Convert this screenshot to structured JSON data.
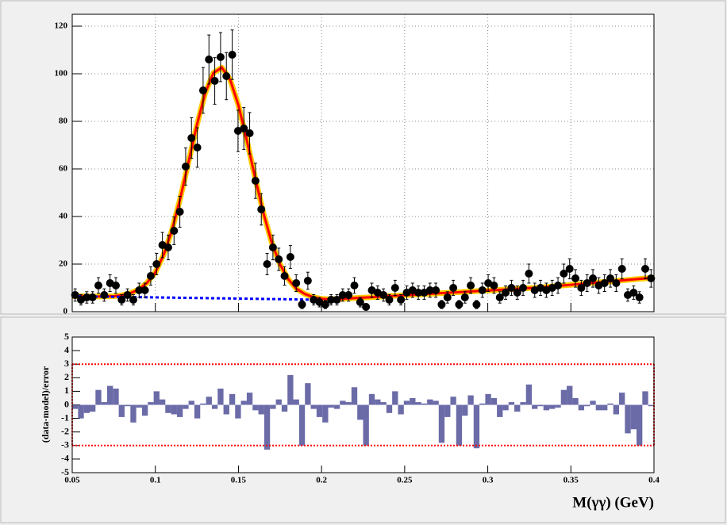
{
  "chart_data": [
    {
      "type": "scatter",
      "x": [
        0.05175,
        0.05525,
        0.05875,
        0.06225,
        0.06575,
        0.06925,
        0.07275,
        0.07625,
        0.07975,
        0.08325,
        0.08675,
        0.09025,
        0.09375,
        0.09725,
        0.10075,
        0.10425,
        0.10775,
        0.11125,
        0.11475,
        0.11825,
        0.12175,
        0.12525,
        0.12875,
        0.13225,
        0.13575,
        0.13925,
        0.14275,
        0.14625,
        0.14975,
        0.15325,
        0.15675,
        0.16025,
        0.16375,
        0.16725,
        0.17075,
        0.17425,
        0.17775,
        0.18125,
        0.18475,
        0.18825,
        0.19175,
        0.19525,
        0.19875,
        0.20225,
        0.20575,
        0.20925,
        0.21275,
        0.21625,
        0.21975,
        0.22325,
        0.22675,
        0.23025,
        0.23375,
        0.23725,
        0.24075,
        0.24425,
        0.24775,
        0.25125,
        0.25475,
        0.25825,
        0.26175,
        0.26525,
        0.26875,
        0.27225,
        0.27575,
        0.27925,
        0.28275,
        0.28625,
        0.28975,
        0.29325,
        0.29675,
        0.30025,
        0.30375,
        0.30725,
        0.31075,
        0.31425,
        0.31775,
        0.32125,
        0.32475,
        0.32825,
        0.33175,
        0.33525,
        0.33875,
        0.34225,
        0.34575,
        0.34925,
        0.35275,
        0.35625,
        0.35975,
        0.36325,
        0.36675,
        0.37025,
        0.37375,
        0.37725,
        0.38075,
        0.38425,
        0.38775,
        0.39125,
        0.39475,
        0.39825
      ],
      "values": [
        7,
        5,
        6,
        6,
        11,
        7,
        12,
        11,
        5,
        7,
        5,
        9,
        9,
        15,
        20,
        28,
        27,
        34,
        42,
        61,
        73,
        69,
        93,
        106,
        97,
        107,
        99,
        108,
        76,
        77,
        75,
        55,
        43,
        20,
        27,
        22,
        15,
        23,
        12,
        3,
        13,
        5,
        4,
        3,
        5,
        5,
        7,
        7,
        11,
        4,
        2,
        9,
        8,
        7,
        5,
        10,
        5,
        8,
        9,
        8,
        8,
        9,
        9,
        3,
        6,
        10,
        3,
        6,
        11,
        3,
        9,
        12,
        11,
        6,
        8,
        10,
        8,
        10,
        16,
        9,
        10,
        9,
        10,
        11,
        16,
        18,
        14,
        10,
        12,
        14,
        11,
        12,
        14,
        12,
        18,
        7,
        8,
        6,
        18,
        14
      ],
      "errors": [
        2.6,
        2.2,
        2.4,
        2.4,
        3.3,
        2.6,
        3.5,
        3.3,
        2.2,
        2.6,
        2.2,
        3,
        3,
        3.9,
        4.5,
        5.3,
        5.2,
        5.8,
        6.5,
        7.8,
        8.5,
        8.3,
        9.6,
        10.3,
        9.8,
        10.3,
        9.9,
        10.4,
        8.7,
        8.8,
        8.7,
        7.4,
        6.6,
        4.5,
        5.2,
        4.7,
        3.9,
        4.8,
        3.5,
        1.7,
        3.6,
        2.2,
        2,
        1.7,
        2.2,
        2.2,
        2.6,
        2.6,
        3.3,
        2,
        1.4,
        3,
        2.8,
        2.6,
        2.2,
        3.2,
        2.2,
        2.8,
        3,
        2.8,
        2.8,
        3,
        3,
        1.7,
        2.4,
        3.2,
        1.7,
        2.4,
        3.3,
        1.7,
        3,
        3.5,
        3.3,
        2.4,
        2.8,
        3.2,
        2.8,
        3.2,
        4,
        3,
        3.2,
        3,
        3.2,
        3.3,
        4,
        4.2,
        3.7,
        3.2,
        3.5,
        3.7,
        3.3,
        3.5,
        3.7,
        3.5,
        4.2,
        2.6,
        2.8,
        2.4,
        4.2,
        3.7
      ],
      "color": "#000000",
      "lines": [
        {
          "x": [
            0.05,
            0.055,
            0.06,
            0.065,
            0.07,
            0.075,
            0.08,
            0.085,
            0.09,
            0.095,
            0.1,
            0.105,
            0.11,
            0.115,
            0.12,
            0.125,
            0.13,
            0.135,
            0.14,
            0.145,
            0.15,
            0.155,
            0.16,
            0.165,
            0.17,
            0.175,
            0.18,
            0.185,
            0.19,
            0.195,
            0.2,
            0.205,
            0.21,
            0.215,
            0.22,
            0.225,
            0.23,
            0.235,
            0.24,
            0.245,
            0.25,
            0.255,
            0.26,
            0.265,
            0.27,
            0.275,
            0.28,
            0.285,
            0.29,
            0.295,
            0.3,
            0.305,
            0.31,
            0.315,
            0.32,
            0.325,
            0.33,
            0.335,
            0.34,
            0.345,
            0.35,
            0.355,
            0.36,
            0.365,
            0.37,
            0.375,
            0.38,
            0.385,
            0.39,
            0.395,
            0.4
          ],
          "values": [
            6.5,
            6.45,
            6.4,
            6.35,
            6.4,
            6.5,
            6.9,
            7.8,
            9.3,
            12.1,
            16.5,
            23.9,
            34.3,
            47.6,
            63.0,
            78.5,
            91.9,
            100.4,
            102.6,
            97.5,
            86.8,
            72.2,
            56.4,
            41.6,
            29.1,
            19.9,
            13.6,
            9.6,
            7.4,
            6.1,
            5.4,
            5.2,
            5.3,
            5.5,
            5.7,
            5.9,
            6.1,
            6.3,
            6.5,
            6.7,
            6.9,
            7.1,
            7.3,
            7.5,
            7.7,
            7.9,
            8.1,
            8.3,
            8.5,
            8.7,
            8.9,
            9.1,
            9.3,
            9.5,
            9.7,
            9.9,
            10.1,
            10.4,
            10.7,
            11.0,
            11.3,
            11.6,
            11.9,
            12.2,
            12.5,
            12.8,
            13.1,
            13.4,
            13.7,
            14.0,
            14.3
          ],
          "color": "#ff0000",
          "band_color": "#ffcc00",
          "dashed": false
        },
        {
          "x": [
            0.05,
            0.06,
            0.07,
            0.08,
            0.09,
            0.1,
            0.11,
            0.12,
            0.13,
            0.14,
            0.15,
            0.16,
            0.17,
            0.18,
            0.19,
            0.2
          ],
          "values": [
            6.5,
            6.4,
            6.3,
            6.2,
            6.1,
            6.0,
            5.9,
            5.8,
            5.7,
            5.6,
            5.5,
            5.4,
            5.3,
            5.2,
            5.1,
            5.0
          ],
          "color": "#0000ff",
          "dashed": true
        }
      ],
      "xlim": [
        0.05,
        0.4
      ],
      "ylim": [
        0,
        125
      ],
      "xticks": [
        0.05,
        0.1,
        0.15,
        0.2,
        0.25,
        0.3,
        0.35,
        0.4
      ],
      "yticks": [
        0,
        20,
        40,
        60,
        80,
        100,
        120
      ],
      "grid": true
    },
    {
      "type": "bar",
      "values": [
        -0.3,
        -1.0,
        -0.6,
        -0.5,
        1.1,
        0.2,
        1.4,
        1.2,
        -0.9,
        -0.1,
        -1.3,
        -0.2,
        -0.8,
        0.2,
        1.0,
        0.4,
        -0.6,
        -0.7,
        -0.9,
        -0.3,
        0.3,
        -1.0,
        0.1,
        0.6,
        -0.3,
        1.2,
        -0.7,
        0.8,
        -1.0,
        0.3,
        0.9,
        -0.4,
        -0.7,
        -3.3,
        -0.3,
        0.4,
        -0.5,
        2.2,
        0.4,
        -3.0,
        1.6,
        -0.3,
        -0.9,
        -1.3,
        -0.2,
        -0.3,
        0.3,
        0.2,
        1.3,
        -1.1,
        -3.0,
        0.8,
        0.4,
        0.2,
        -0.6,
        1.0,
        -0.7,
        0.3,
        0.5,
        0.2,
        0.1,
        0.4,
        0.3,
        -2.8,
        -0.9,
        0.6,
        -3.0,
        -0.8,
        0.7,
        -3.2,
        0.1,
        0.8,
        0.5,
        -0.9,
        -0.4,
        0.2,
        -0.5,
        0.2,
        1.5,
        -0.3,
        -0.1,
        -0.4,
        -0.3,
        -0.2,
        1.1,
        1.4,
        0.5,
        -0.4,
        -0.1,
        0.3,
        -0.4,
        -0.4,
        0.1,
        -0.7,
        0.9,
        -2.1,
        -1.8,
        -3.0,
        1.0,
        -0.1
      ],
      "color": "#6b6ba8",
      "xlabel": "M(γγ) (GeV)",
      "ylabel": "(data-model)/error",
      "hlines": [
        -3,
        3
      ],
      "hline_color": "#ff0000",
      "xlim": [
        0.05,
        0.4
      ],
      "ylim": [
        -5,
        5
      ],
      "xticks": [
        0.05,
        0.1,
        0.15,
        0.2,
        0.25,
        0.3,
        0.35,
        0.4
      ],
      "yticks": [
        -5,
        -4,
        -3,
        -2,
        -1,
        0,
        1,
        2,
        3,
        4,
        5
      ],
      "grid": false
    }
  ]
}
